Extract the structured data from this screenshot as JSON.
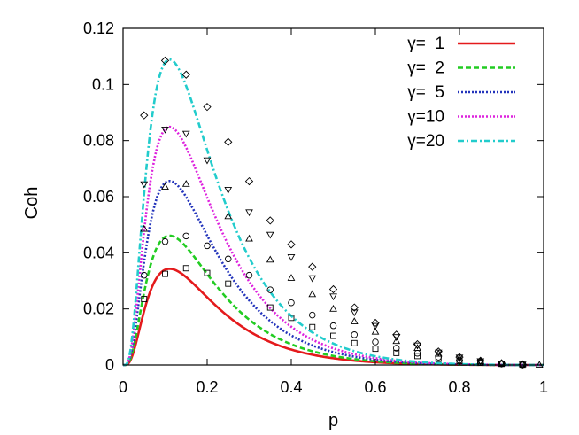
{
  "chart_data": {
    "type": "line",
    "xlabel": "p",
    "ylabel": "Coh",
    "xlim": [
      0,
      1
    ],
    "ylim": [
      0,
      0.12
    ],
    "xticks": [
      "0",
      "0.2",
      "0.4",
      "0.6",
      "0.8",
      "1"
    ],
    "yticks": [
      "0",
      "0.02",
      "0.04",
      "0.06",
      "0.08",
      "0.1",
      "0.12"
    ],
    "legend_position": "top-right",
    "grid": false,
    "series": [
      {
        "name": "γ=  1",
        "color": "#e41a1c",
        "dash": "solid",
        "marker": "square",
        "scale": 0.0343,
        "markers": [
          {
            "x": 0.05,
            "y": 0.0235
          },
          {
            "x": 0.1,
            "y": 0.0325
          },
          {
            "x": 0.15,
            "y": 0.0345
          },
          {
            "x": 0.2,
            "y": 0.0328
          },
          {
            "x": 0.25,
            "y": 0.029
          },
          {
            "x": 0.35,
            "y": 0.0205
          },
          {
            "x": 0.4,
            "y": 0.0168
          },
          {
            "x": 0.45,
            "y": 0.0135
          },
          {
            "x": 0.5,
            "y": 0.0104
          },
          {
            "x": 0.55,
            "y": 0.0078
          },
          {
            "x": 0.6,
            "y": 0.0058
          },
          {
            "x": 0.65,
            "y": 0.0043
          },
          {
            "x": 0.7,
            "y": 0.0032
          },
          {
            "x": 0.75,
            "y": 0.0022
          },
          {
            "x": 0.8,
            "y": 0.0014
          },
          {
            "x": 0.85,
            "y": 0.0008
          },
          {
            "x": 0.9,
            "y": 0.0004
          },
          {
            "x": 0.95,
            "y": 0.0001
          }
        ]
      },
      {
        "name": "γ=  2",
        "color": "#22cc22",
        "dash": "dashed",
        "marker": "circle",
        "scale": 0.0461,
        "markers": [
          {
            "x": 0.05,
            "y": 0.032
          },
          {
            "x": 0.1,
            "y": 0.044
          },
          {
            "x": 0.15,
            "y": 0.046
          },
          {
            "x": 0.2,
            "y": 0.0425
          },
          {
            "x": 0.25,
            "y": 0.0378
          },
          {
            "x": 0.3,
            "y": 0.032
          },
          {
            "x": 0.35,
            "y": 0.0268
          },
          {
            "x": 0.4,
            "y": 0.0222
          },
          {
            "x": 0.45,
            "y": 0.0178
          },
          {
            "x": 0.5,
            "y": 0.014
          },
          {
            "x": 0.55,
            "y": 0.0108
          },
          {
            "x": 0.6,
            "y": 0.0082
          },
          {
            "x": 0.65,
            "y": 0.006
          },
          {
            "x": 0.7,
            "y": 0.0042
          },
          {
            "x": 0.75,
            "y": 0.0028
          },
          {
            "x": 0.8,
            "y": 0.0017
          },
          {
            "x": 0.85,
            "y": 0.0009
          },
          {
            "x": 0.9,
            "y": 0.0004
          },
          {
            "x": 0.95,
            "y": 0.0001
          }
        ]
      },
      {
        "name": "γ=  5",
        "color": "#2233bb",
        "dash": "dotted",
        "marker": "triangle-up",
        "scale": 0.0656,
        "markers": [
          {
            "x": 0.05,
            "y": 0.0485
          },
          {
            "x": 0.1,
            "y": 0.0635
          },
          {
            "x": 0.15,
            "y": 0.0645
          },
          {
            "x": 0.25,
            "y": 0.053
          },
          {
            "x": 0.3,
            "y": 0.045
          },
          {
            "x": 0.35,
            "y": 0.0375
          },
          {
            "x": 0.4,
            "y": 0.031
          },
          {
            "x": 0.45,
            "y": 0.0252
          },
          {
            "x": 0.5,
            "y": 0.02
          },
          {
            "x": 0.55,
            "y": 0.0155
          },
          {
            "x": 0.6,
            "y": 0.0118
          },
          {
            "x": 0.65,
            "y": 0.0085
          },
          {
            "x": 0.7,
            "y": 0.006
          },
          {
            "x": 0.75,
            "y": 0.004
          },
          {
            "x": 0.8,
            "y": 0.0024
          },
          {
            "x": 0.85,
            "y": 0.0013
          },
          {
            "x": 0.9,
            "y": 0.0006
          },
          {
            "x": 0.95,
            "y": 0.0002
          },
          {
            "x": 0.99,
            "y": 0.0
          }
        ]
      },
      {
        "name": "γ=10",
        "color": "#dd22dd",
        "dash": "dotted",
        "marker": "triangle-down",
        "scale": 0.0849,
        "markers": [
          {
            "x": 0.05,
            "y": 0.0645
          },
          {
            "x": 0.1,
            "y": 0.084
          },
          {
            "x": 0.15,
            "y": 0.0825
          },
          {
            "x": 0.2,
            "y": 0.073
          },
          {
            "x": 0.25,
            "y": 0.0625
          },
          {
            "x": 0.3,
            "y": 0.0545
          },
          {
            "x": 0.35,
            "y": 0.0465
          },
          {
            "x": 0.4,
            "y": 0.0385
          },
          {
            "x": 0.45,
            "y": 0.031
          },
          {
            "x": 0.5,
            "y": 0.0245
          },
          {
            "x": 0.55,
            "y": 0.0188
          },
          {
            "x": 0.6,
            "y": 0.014
          },
          {
            "x": 0.65,
            "y": 0.01
          },
          {
            "x": 0.7,
            "y": 0.007
          },
          {
            "x": 0.75,
            "y": 0.0045
          },
          {
            "x": 0.8,
            "y": 0.0027
          },
          {
            "x": 0.85,
            "y": 0.0014
          },
          {
            "x": 0.9,
            "y": 0.0006
          },
          {
            "x": 0.95,
            "y": 0.0002
          }
        ]
      },
      {
        "name": "γ=20",
        "color": "#22cccc",
        "dash": "dashdot",
        "marker": "diamond",
        "scale": 0.1089,
        "markers": [
          {
            "x": 0.05,
            "y": 0.089
          },
          {
            "x": 0.1,
            "y": 0.1085
          },
          {
            "x": 0.15,
            "y": 0.1035
          },
          {
            "x": 0.2,
            "y": 0.092
          },
          {
            "x": 0.25,
            "y": 0.0795
          },
          {
            "x": 0.3,
            "y": 0.0655
          },
          {
            "x": 0.35,
            "y": 0.0515
          },
          {
            "x": 0.4,
            "y": 0.043
          },
          {
            "x": 0.45,
            "y": 0.035
          },
          {
            "x": 0.5,
            "y": 0.027
          },
          {
            "x": 0.55,
            "y": 0.0205
          },
          {
            "x": 0.6,
            "y": 0.015
          },
          {
            "x": 0.65,
            "y": 0.0108
          },
          {
            "x": 0.7,
            "y": 0.0074
          },
          {
            "x": 0.75,
            "y": 0.0048
          },
          {
            "x": 0.8,
            "y": 0.0028
          },
          {
            "x": 0.85,
            "y": 0.0015
          },
          {
            "x": 0.9,
            "y": 0.0006
          },
          {
            "x": 0.95,
            "y": 0.0002
          }
        ]
      }
    ]
  }
}
